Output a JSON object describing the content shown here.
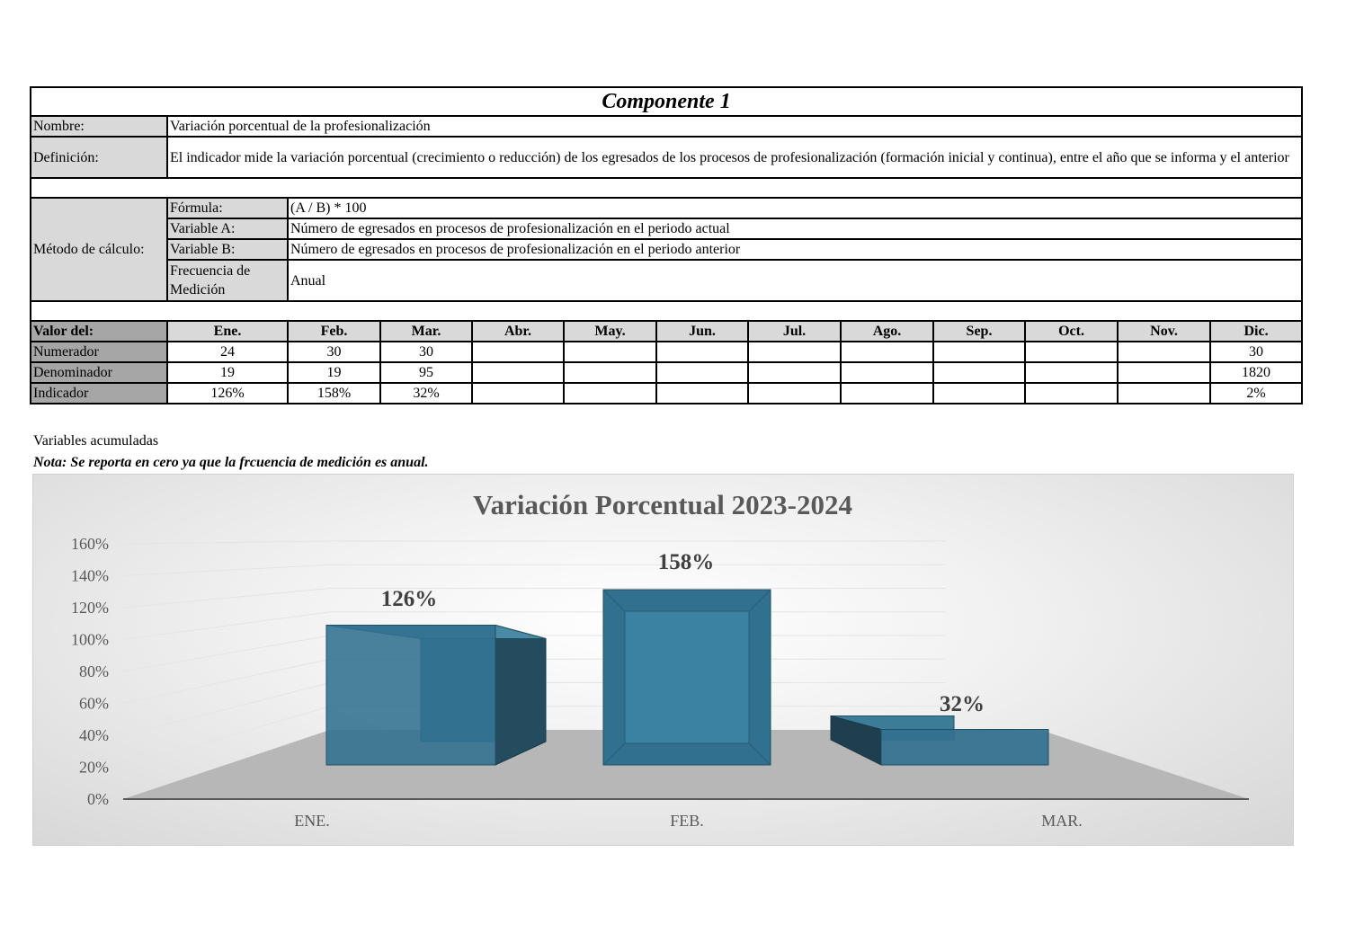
{
  "title": "Componente 1",
  "nombre": {
    "label": "Nombre:",
    "value": "Variación porcentual de la profesionalización"
  },
  "definicion": {
    "label": "Definición:",
    "value": "El indicador mide la variación porcentual (crecimiento o reducción) de los egresados de los procesos de profesionalización (formación inicial y continua), entre el año que se informa y el anterior"
  },
  "metodo": {
    "label": "Método de cálculo:",
    "formula_label": "Fórmula:",
    "formula": "(A / B) * 100",
    "var_a_label": "Variable A:",
    "var_a": "Número de egresados en procesos de profesionalización en el periodo actual",
    "var_b_label": "Variable B:",
    "var_b": "Número de egresados en procesos de profesionalización en el periodo anterior",
    "frecuencia_label": "Frecuencia de Medición",
    "frecuencia": "Anual"
  },
  "valores": {
    "header": "Valor del:",
    "months": [
      "Ene.",
      "Feb.",
      "Mar.",
      "Abr.",
      "May.",
      "Jun.",
      "Jul.",
      "Ago.",
      "Sep.",
      "Oct.",
      "Nov.",
      "Dic."
    ],
    "rows": [
      {
        "label": "Numerador",
        "values": [
          "24",
          "30",
          "30",
          "",
          "",
          "",
          "",
          "",
          "",
          "",
          "",
          "30"
        ]
      },
      {
        "label": "Denominador",
        "values": [
          "19",
          "19",
          "95",
          "",
          "",
          "",
          "",
          "",
          "",
          "",
          "",
          "1820"
        ]
      },
      {
        "label": "Indicador",
        "values": [
          "126%",
          "158%",
          "32%",
          "",
          "",
          "",
          "",
          "",
          "",
          "",
          "",
          "2%"
        ]
      }
    ]
  },
  "notes": {
    "acumuladas": "Variables acumuladas",
    "nota": "Nota: Se reporta en cero ya que la frcuencia de medición es anual."
  },
  "chart_data": {
    "type": "bar",
    "title": "Variación Porcentual 2023-2024",
    "categories": [
      "ENE.",
      "FEB.",
      "MAR."
    ],
    "values": [
      126,
      158,
      32
    ],
    "data_labels": [
      "126%",
      "158%",
      "32%"
    ],
    "yticks": [
      "0%",
      "20%",
      "40%",
      "60%",
      "80%",
      "100%",
      "120%",
      "140%",
      "160%"
    ],
    "ylim": [
      0,
      160
    ],
    "bar_color": "#31708f",
    "grid": true,
    "legend": "none"
  }
}
